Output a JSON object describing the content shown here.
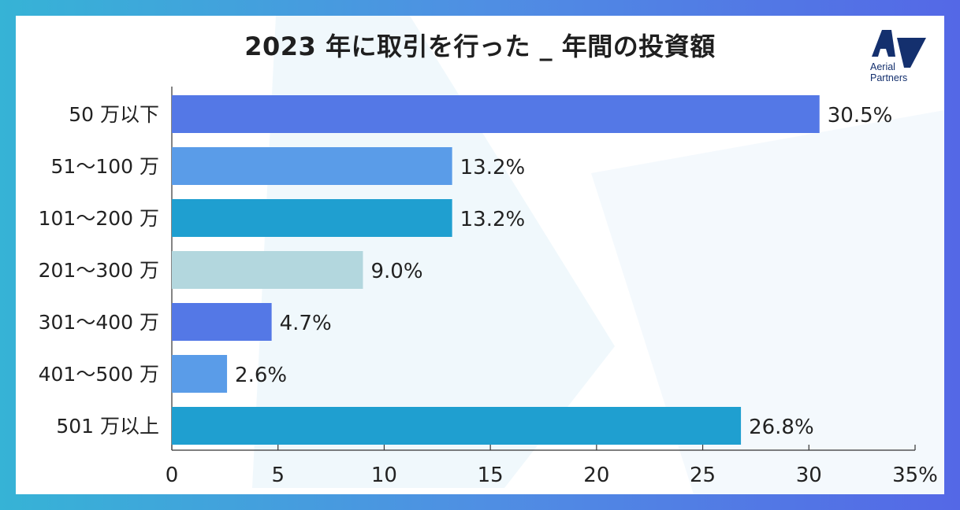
{
  "brand": {
    "name_line1": "Aerial",
    "name_line2": "Partners",
    "logo_color": "#14306e"
  },
  "chart_data": {
    "type": "bar",
    "orientation": "horizontal",
    "title": "2023 年に取引を行った _ 年間の投資額",
    "xlabel": "",
    "ylabel": "",
    "categories": [
      "50 万以下",
      "51〜100 万",
      "101〜200 万",
      "201〜300 万",
      "301〜400 万",
      "401〜500 万",
      "501 万以上"
    ],
    "values": [
      30.5,
      13.2,
      13.2,
      9.0,
      4.7,
      2.6,
      26.8
    ],
    "value_labels": [
      "30.5%",
      "13.2%",
      "13.2%",
      "9.0%",
      "4.7%",
      "2.6%",
      "26.8%"
    ],
    "bar_colors": [
      "#5478e6",
      "#5a9ce8",
      "#1f9fd0",
      "#b3d7de",
      "#5478e6",
      "#5a9ce8",
      "#1f9fd0"
    ],
    "xlim": [
      0,
      35
    ],
    "xticks": [
      0,
      5,
      10,
      15,
      20,
      25,
      30,
      35
    ],
    "xtick_labels": [
      "0",
      "5",
      "10",
      "15",
      "20",
      "25",
      "30",
      "35%"
    ],
    "grid": false,
    "legend": "none"
  }
}
